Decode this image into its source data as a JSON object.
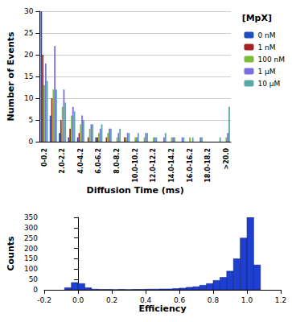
{
  "chart_data": [
    {
      "type": "bar",
      "xlabel": "Diffusion Time (ms)",
      "ylabel": "Number of Events",
      "zlabel": "[MpX]",
      "categories": [
        "0-0.2",
        null,
        "2.0-2.2",
        null,
        "4.0-4.2",
        null,
        "6.0-6.2",
        null,
        "8.0-8.2",
        null,
        "10.0-10.2",
        null,
        "12.0-12.2",
        null,
        "14.0-14.2",
        null,
        "16.0-16.2",
        null,
        "18.0-18.2",
        null,
        ">20.0"
      ],
      "series": [
        {
          "name": "0 nM",
          "color": "#1f4fbf",
          "values": [
            30,
            6,
            2,
            1,
            1,
            0,
            1,
            0,
            0,
            0,
            0,
            0,
            0,
            0,
            0,
            0,
            0,
            0,
            0,
            0,
            0
          ]
        },
        {
          "name": "1 nM",
          "color": "#a32424",
          "values": [
            20,
            10,
            5,
            3,
            2,
            1,
            1,
            1,
            0,
            1,
            0,
            0,
            0,
            0,
            0,
            0,
            0,
            0,
            0,
            0,
            0
          ]
        },
        {
          "name": "100 nM",
          "color": "#7cbc3c",
          "values": [
            13,
            12,
            8,
            6,
            4,
            3,
            2,
            2,
            1,
            1,
            1,
            1,
            1,
            0,
            1,
            0,
            1,
            0,
            0,
            0,
            1
          ]
        },
        {
          "name": "1 μM",
          "color": "#7b6fe0",
          "values": [
            18,
            22,
            12,
            8,
            6,
            4,
            3,
            3,
            2,
            2,
            1,
            2,
            1,
            1,
            1,
            1,
            0,
            1,
            0,
            0,
            2
          ]
        },
        {
          "name": "10 μM",
          "color": "#5aa9a9",
          "values": [
            14,
            12,
            9,
            7,
            5,
            4,
            4,
            3,
            3,
            2,
            2,
            2,
            1,
            2,
            1,
            1,
            1,
            1,
            0,
            1,
            8
          ]
        }
      ],
      "ylim": [
        0,
        30
      ],
      "yticks": [
        0,
        5,
        10,
        15,
        20,
        25,
        30
      ],
      "grid": true,
      "legend": "right"
    },
    {
      "type": "histogram",
      "xlabel": "Efficiency",
      "ylabel": "Counts",
      "bins": [
        -0.08,
        -0.04,
        0,
        0.04,
        0.08,
        0.12,
        0.16,
        0.2,
        0.24,
        0.28,
        0.32,
        0.36,
        0.4,
        0.44,
        0.48,
        0.52,
        0.56,
        0.6,
        0.64,
        0.68,
        0.72,
        0.76,
        0.8,
        0.84,
        0.88,
        0.92,
        0.96,
        1,
        1.04,
        1.08
      ],
      "values": [
        10,
        35,
        30,
        10,
        3,
        2,
        2,
        1,
        2,
        1,
        2,
        2,
        3,
        3,
        4,
        4,
        6,
        8,
        12,
        15,
        22,
        30,
        45,
        60,
        90,
        150,
        250,
        350,
        120
      ],
      "color": "#1f3fd0",
      "xlim": [
        -0.2,
        1.2
      ],
      "xticks": [
        -0.2,
        {
          "value": 0,
          "label": "0.0"
        },
        0.2,
        0.4,
        0.6,
        0.8,
        {
          "value": 1,
          "label": "1.0"
        },
        1.2
      ],
      "ylim": [
        0,
        350
      ],
      "yticks": [
        0,
        50,
        100,
        150,
        200,
        250,
        300,
        350
      ],
      "grid": false
    }
  ]
}
